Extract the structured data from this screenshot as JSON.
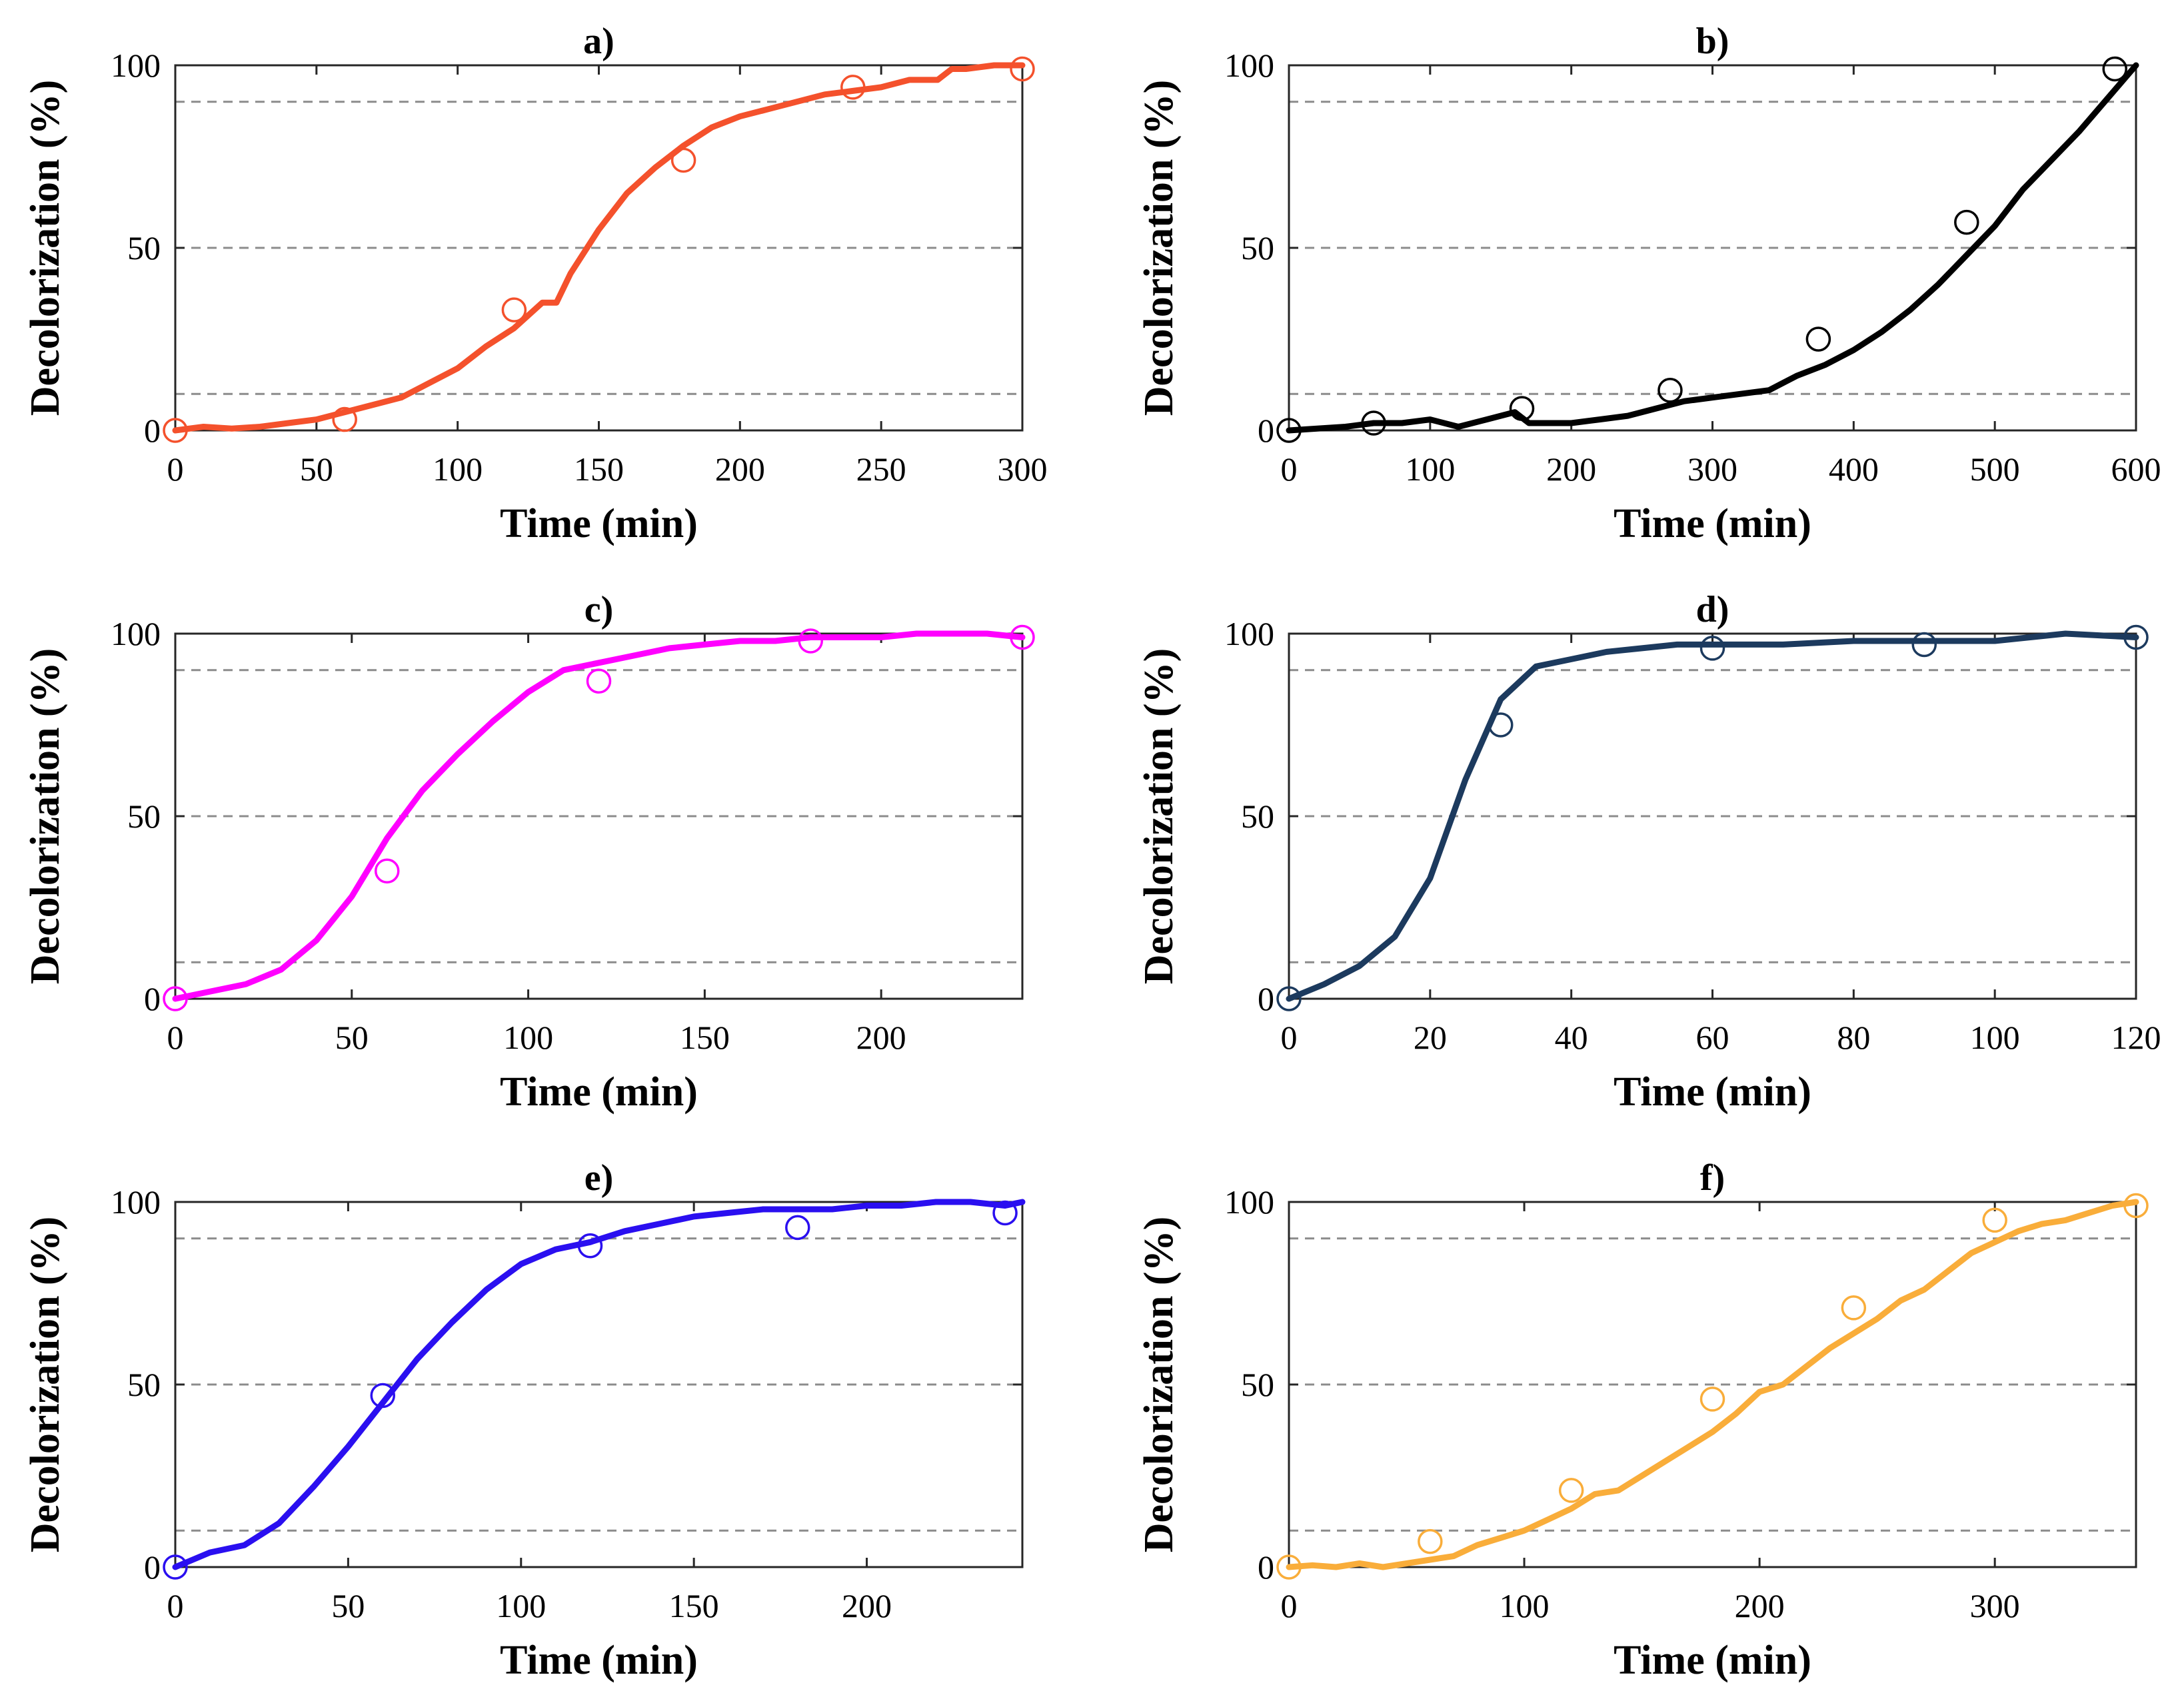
{
  "chart_data": [
    {
      "type": "line",
      "title": "a)",
      "xlabel": "Time (min)",
      "ylabel": "Decolorization (%)",
      "xlim": [
        0,
        300
      ],
      "ylim": [
        0,
        100
      ],
      "xticks": [
        0,
        50,
        100,
        150,
        200,
        250,
        300
      ],
      "yticks": [
        0,
        50,
        100
      ],
      "ref_lines": [
        10,
        50,
        90
      ],
      "color": "#f4512c",
      "line": {
        "x": [
          0,
          10,
          20,
          30,
          40,
          50,
          60,
          70,
          80,
          90,
          100,
          110,
          120,
          130,
          135,
          140,
          150,
          160,
          170,
          180,
          190,
          200,
          210,
          220,
          230,
          240,
          250,
          260,
          270,
          275,
          280,
          290,
          300
        ],
        "y": [
          0,
          1,
          0.5,
          1,
          2,
          3,
          5,
          7,
          9,
          13,
          17,
          23,
          28,
          35,
          35,
          43,
          55,
          65,
          72,
          78,
          83,
          86,
          88,
          90,
          92,
          93,
          94,
          96,
          96,
          99,
          99,
          100,
          100
        ]
      },
      "points": {
        "x": [
          0,
          60,
          120,
          180,
          240,
          300
        ],
        "y": [
          0,
          3,
          33,
          74,
          94,
          99
        ]
      }
    },
    {
      "type": "line",
      "title": "b)",
      "xlabel": "Time (min)",
      "ylabel": "Decolorization (%)",
      "xlim": [
        0,
        600
      ],
      "ylim": [
        0,
        100
      ],
      "xticks": [
        0,
        100,
        200,
        300,
        400,
        500,
        600
      ],
      "yticks": [
        0,
        50,
        100
      ],
      "ref_lines": [
        10,
        50,
        90
      ],
      "color": "#000000",
      "line": {
        "x": [
          0,
          20,
          40,
          60,
          80,
          100,
          120,
          140,
          160,
          170,
          180,
          200,
          220,
          240,
          260,
          280,
          300,
          320,
          340,
          360,
          380,
          400,
          420,
          440,
          460,
          480,
          500,
          520,
          540,
          560,
          580,
          600
        ],
        "y": [
          0,
          0.5,
          1,
          2,
          2,
          3,
          1,
          3,
          5,
          2,
          2,
          2,
          3,
          4,
          6,
          8,
          9,
          10,
          11,
          15,
          18,
          22,
          27,
          33,
          40,
          48,
          56,
          66,
          74,
          82,
          91,
          100
        ]
      },
      "points": {
        "x": [
          0,
          60,
          165,
          270,
          375,
          480,
          585
        ],
        "y": [
          0,
          2,
          6,
          11,
          25,
          57,
          99
        ]
      }
    },
    {
      "type": "line",
      "title": "c)",
      "xlabel": "Time (min)",
      "ylabel": "Decolorization (%)",
      "xlim": [
        0,
        240
      ],
      "ylim": [
        0,
        100
      ],
      "xticks": [
        0,
        50,
        100,
        150,
        200
      ],
      "yticks": [
        0,
        50,
        100
      ],
      "ref_lines": [
        10,
        50,
        90
      ],
      "color": "#ff00ff",
      "line": {
        "x": [
          0,
          10,
          20,
          30,
          40,
          50,
          60,
          70,
          80,
          90,
          100,
          110,
          120,
          130,
          140,
          150,
          160,
          170,
          180,
          190,
          200,
          210,
          220,
          230,
          240
        ],
        "y": [
          0,
          2,
          4,
          8,
          16,
          28,
          44,
          57,
          67,
          76,
          84,
          90,
          92,
          94,
          96,
          97,
          98,
          98,
          99,
          99,
          99,
          100,
          100,
          100,
          99
        ]
      },
      "points": {
        "x": [
          0,
          60,
          120,
          180,
          240
        ],
        "y": [
          0,
          35,
          87,
          98,
          99
        ]
      }
    },
    {
      "type": "line",
      "title": "d)",
      "xlabel": "Time (min)",
      "ylabel": "Decolorization (%)",
      "xlim": [
        0,
        120
      ],
      "ylim": [
        0,
        100
      ],
      "xticks": [
        0,
        20,
        40,
        60,
        80,
        100,
        120
      ],
      "yticks": [
        0,
        50,
        100
      ],
      "ref_lines": [
        10,
        50,
        90
      ],
      "color": "#1c3a5e",
      "line": {
        "x": [
          0,
          5,
          10,
          15,
          20,
          25,
          30,
          35,
          40,
          45,
          50,
          55,
          60,
          70,
          80,
          90,
          100,
          110,
          120
        ],
        "y": [
          0,
          4,
          9,
          17,
          33,
          60,
          82,
          91,
          93,
          95,
          96,
          97,
          97,
          97,
          98,
          98,
          98,
          100,
          99
        ]
      },
      "points": {
        "x": [
          0,
          30,
          60,
          90,
          120
        ],
        "y": [
          0,
          75,
          96,
          97,
          99
        ]
      }
    },
    {
      "type": "line",
      "title": "e)",
      "xlabel": "Time (min)",
      "ylabel": "Decolorization (%)",
      "xlim": [
        0,
        245
      ],
      "ylim": [
        0,
        100
      ],
      "xticks": [
        0,
        50,
        100,
        150,
        200
      ],
      "yticks": [
        0,
        50,
        100
      ],
      "ref_lines": [
        10,
        50,
        90
      ],
      "color": "#2a0ff0",
      "line": {
        "x": [
          0,
          10,
          20,
          30,
          40,
          50,
          60,
          70,
          80,
          90,
          100,
          110,
          120,
          130,
          140,
          150,
          160,
          170,
          180,
          190,
          200,
          210,
          220,
          230,
          240,
          245
        ],
        "y": [
          0,
          4,
          6,
          12,
          22,
          33,
          45,
          57,
          67,
          76,
          83,
          87,
          89,
          92,
          94,
          96,
          97,
          98,
          98,
          98,
          99,
          99,
          100,
          100,
          99,
          100
        ]
      },
      "points": {
        "x": [
          0,
          60,
          120,
          180,
          240
        ],
        "y": [
          0,
          47,
          88,
          93,
          97
        ]
      }
    },
    {
      "type": "line",
      "title": "f)",
      "xlabel": "Time (min)",
      "ylabel": "Decolorization (%)",
      "xlim": [
        0,
        360
      ],
      "ylim": [
        0,
        100
      ],
      "xticks": [
        0,
        100,
        200,
        300
      ],
      "yticks": [
        0,
        50,
        100
      ],
      "ref_lines": [
        10,
        50,
        90
      ],
      "color": "#f9ad3a",
      "line": {
        "x": [
          0,
          10,
          20,
          30,
          40,
          50,
          60,
          70,
          80,
          90,
          100,
          110,
          120,
          130,
          140,
          150,
          160,
          170,
          180,
          190,
          200,
          210,
          220,
          230,
          240,
          250,
          260,
          270,
          280,
          290,
          300,
          310,
          320,
          330,
          340,
          350,
          360
        ],
        "y": [
          0,
          0.5,
          0,
          1,
          0,
          1,
          2,
          3,
          6,
          8,
          10,
          13,
          16,
          20,
          21,
          25,
          29,
          33,
          37,
          42,
          48,
          50,
          55,
          60,
          64,
          68,
          73,
          76,
          81,
          86,
          89,
          92,
          94,
          95,
          97,
          99,
          100
        ]
      },
      "points": {
        "x": [
          0,
          60,
          120,
          180,
          240,
          300,
          360
        ],
        "y": [
          0,
          7,
          21,
          46,
          71,
          95,
          99
        ]
      }
    }
  ]
}
